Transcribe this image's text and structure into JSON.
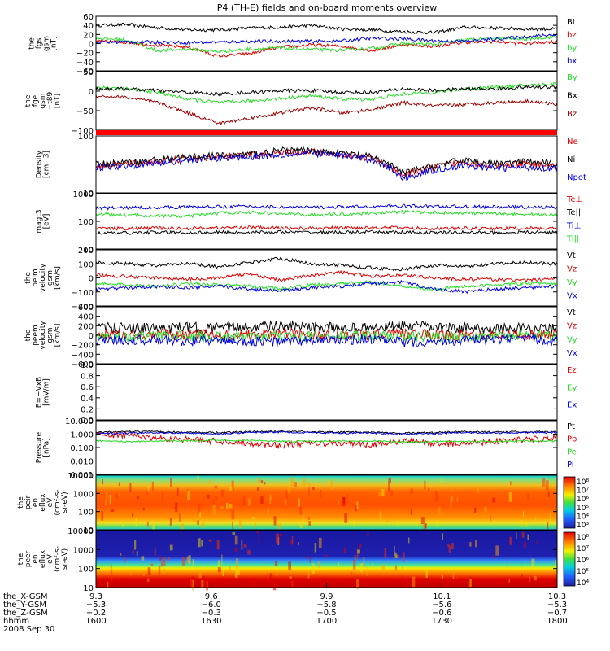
{
  "title": "P4 (TH-E) fields and on-board moments overview",
  "colors": {
    "black": "#000000",
    "red": "#dd0000",
    "green": "#22dd22",
    "blue": "#0000dd",
    "darkred": "#990000"
  },
  "chart_data": [
    {
      "type": "line",
      "panel": "fgs",
      "ylabel": [
        "the",
        "fgs",
        "gsm",
        "[nT]"
      ],
      "ticks": [
        "60",
        "40",
        "20",
        "0",
        "−20",
        "−40",
        "−60"
      ],
      "ylim": [
        -60,
        60
      ],
      "series": [
        {
          "name": "Bt",
          "color": "black",
          "values": [
            40,
            42,
            35,
            30,
            30,
            34,
            36,
            40,
            32,
            30,
            26,
            24,
            36,
            34,
            32,
            32
          ]
        },
        {
          "name": "bz",
          "color": "red",
          "values": [
            5,
            3,
            -4,
            -8,
            -28,
            -22,
            -8,
            -3,
            -6,
            -16,
            -2,
            -6,
            3,
            4,
            0,
            5
          ]
        },
        {
          "name": "by",
          "color": "green",
          "values": [
            12,
            8,
            -16,
            -12,
            -18,
            -12,
            -10,
            -13,
            -15,
            -10,
            0,
            -2,
            8,
            12,
            10,
            15
          ]
        },
        {
          "name": "bx",
          "color": "blue",
          "values": [
            2,
            4,
            3,
            2,
            3,
            5,
            5,
            5,
            6,
            12,
            10,
            6,
            5,
            10,
            15,
            20
          ]
        }
      ]
    },
    {
      "type": "line",
      "panel": "fge",
      "ylabel": [
        "the",
        "fge",
        "gsm",
        "−t89",
        "[nT]"
      ],
      "ticks": [
        "50",
        "0",
        "−50",
        "−100"
      ],
      "ylim": [
        -120,
        50
      ],
      "series": [
        {
          "name": "By",
          "color": "green",
          "values": [
            5,
            0,
            -10,
            -30,
            -40,
            -35,
            -28,
            -20,
            -30,
            -30,
            -15,
            -10,
            0,
            5,
            10,
            15
          ]
        },
        {
          "name": "Bx",
          "color": "black",
          "values": [
            0,
            0,
            -5,
            -10,
            -15,
            -10,
            -5,
            -5,
            -10,
            -10,
            0,
            -5,
            0,
            0,
            5,
            5
          ]
        },
        {
          "name": "Bz",
          "color": "darkred",
          "values": [
            -20,
            -25,
            -40,
            -70,
            -100,
            -85,
            -70,
            -55,
            -70,
            -60,
            -40,
            -50,
            -45,
            -40,
            -35,
            -45
          ]
        }
      ]
    },
    {
      "type": "line",
      "panel": "density",
      "ylabel": [
        "Density",
        "[cm−3]"
      ],
      "ticks": [
        "100",
        "10"
      ],
      "log": true,
      "ylim": [
        10,
        100
      ],
      "series": [
        {
          "name": "Ne",
          "color": "red",
          "values": [
            30,
            32,
            35,
            40,
            42,
            45,
            50,
            52,
            48,
            40,
            20,
            28,
            35,
            30,
            32,
            30
          ]
        },
        {
          "name": "Ni",
          "color": "black",
          "values": [
            32,
            34,
            38,
            42,
            45,
            48,
            55,
            55,
            50,
            42,
            22,
            30,
            38,
            32,
            35,
            32
          ]
        },
        {
          "name": "Npot",
          "color": "blue",
          "values": [
            28,
            30,
            33,
            38,
            40,
            43,
            47,
            50,
            45,
            38,
            18,
            25,
            30,
            27,
            28,
            27
          ]
        }
      ]
    },
    {
      "type": "line",
      "panel": "mag",
      "ylabel": [
        "magt3",
        "[eV]"
      ],
      "ticks": [
        "1000",
        "100",
        "10"
      ],
      "log": true,
      "ylim": [
        10,
        1000
      ],
      "series": [
        {
          "name": "Te⊥",
          "color": "red",
          "values": [
            55,
            55,
            57,
            56,
            58,
            60,
            57,
            56,
            58,
            60,
            58,
            55,
            56,
            55,
            56,
            55
          ]
        },
        {
          "name": "Te||",
          "color": "black",
          "values": [
            38,
            38,
            40,
            39,
            40,
            40,
            41,
            40,
            40,
            41,
            40,
            39,
            40,
            39,
            40,
            40
          ]
        },
        {
          "name": "Ti⊥",
          "color": "blue",
          "values": [
            300,
            310,
            320,
            330,
            340,
            350,
            330,
            320,
            330,
            340,
            360,
            350,
            340,
            330,
            330,
            320
          ]
        },
        {
          "name": "Ti||",
          "color": "green",
          "values": [
            180,
            170,
            160,
            150,
            200,
            210,
            190,
            170,
            180,
            200,
            220,
            210,
            200,
            190,
            180,
            170
          ]
        }
      ]
    },
    {
      "type": "line",
      "panel": "peim",
      "ylabel": [
        "the",
        "peim",
        "velocity",
        "gsm",
        "[km/s]"
      ],
      "ticks": [
        "200",
        "100",
        "0",
        "−100",
        "−200"
      ],
      "ylim": [
        -200,
        200
      ],
      "series": [
        {
          "name": "Vt",
          "color": "black",
          "values": [
            110,
            100,
            90,
            100,
            80,
            110,
            140,
            100,
            90,
            70,
            60,
            90,
            80,
            100,
            110,
            100
          ]
        },
        {
          "name": "Vz",
          "color": "red",
          "values": [
            20,
            10,
            0,
            -10,
            0,
            30,
            -20,
            20,
            40,
            10,
            20,
            0,
            -10,
            -10,
            -20,
            0
          ]
        },
        {
          "name": "Vy",
          "color": "green",
          "values": [
            -40,
            -50,
            -60,
            -40,
            -50,
            -60,
            -80,
            -50,
            -40,
            -30,
            -60,
            -80,
            -60,
            -50,
            -40,
            -40
          ]
        },
        {
          "name": "Vx",
          "color": "blue",
          "values": [
            -80,
            -70,
            -60,
            -70,
            -60,
            -80,
            -90,
            -70,
            -60,
            -40,
            -30,
            -80,
            -100,
            -80,
            -70,
            -60
          ]
        }
      ]
    },
    {
      "type": "line",
      "panel": "peem",
      "ylabel": [
        "the",
        "peem",
        "velocity",
        "gsm",
        "[km/s]"
      ],
      "ticks": [
        "600",
        "400",
        "200",
        "0",
        "−200",
        "−400",
        "−600"
      ],
      "ylim": [
        -600,
        600
      ],
      "series": [
        {
          "name": "Vt",
          "color": "black",
          "values": [
            150,
            160,
            140,
            170,
            150,
            180,
            190,
            170,
            160,
            150,
            200,
            170,
            150,
            140,
            150,
            140
          ]
        },
        {
          "name": "Vz",
          "color": "red",
          "values": [
            20,
            10,
            30,
            0,
            20,
            10,
            40,
            20,
            10,
            20,
            30,
            10,
            0,
            20,
            10,
            20
          ]
        },
        {
          "name": "Vy",
          "color": "green",
          "values": [
            -20,
            -30,
            -10,
            -20,
            -30,
            -40,
            -20,
            -30,
            -20,
            -10,
            -30,
            -20,
            -30,
            -20,
            -10,
            -20
          ]
        },
        {
          "name": "Vx",
          "color": "blue",
          "values": [
            -100,
            -90,
            -110,
            -120,
            -100,
            -130,
            -140,
            -110,
            -100,
            -90,
            -150,
            -120,
            -110,
            -100,
            -90,
            -100
          ]
        }
      ]
    },
    {
      "type": "line",
      "panel": "efield",
      "ylabel": [
        "E=−VxB",
        "[mV/m]"
      ],
      "ticks": [
        "1.0",
        "0.8",
        "0.6",
        "0.4",
        "0.2",
        "0.0"
      ],
      "ylim": [
        0,
        1
      ],
      "series": [
        {
          "name": "Ez",
          "color": "red",
          "values": []
        },
        {
          "name": "Ey",
          "color": "green",
          "values": []
        },
        {
          "name": "Ex",
          "color": "blue",
          "values": []
        }
      ]
    },
    {
      "type": "line",
      "panel": "pressure",
      "ylabel": [
        "Pressure",
        "[nPa]"
      ],
      "ticks": [
        "10.000",
        "1.000",
        "0.100",
        "0.010",
        "0.001"
      ],
      "log": true,
      "ylim": [
        0.001,
        10
      ],
      "series": [
        {
          "name": "Pt",
          "color": "black",
          "values": [
            1.4,
            1.5,
            1.5,
            1.4,
            1.3,
            1.5,
            1.6,
            1.5,
            1.4,
            1.4,
            1.2,
            1.3,
            1.5,
            1.4,
            1.5,
            1.5
          ]
        },
        {
          "name": "Pb",
          "color": "red",
          "values": [
            0.9,
            0.8,
            0.5,
            0.4,
            0.3,
            0.2,
            0.15,
            0.2,
            0.2,
            0.15,
            0.3,
            0.2,
            0.2,
            0.3,
            0.4,
            0.5
          ]
        },
        {
          "name": "Pe",
          "color": "green",
          "values": [
            0.3,
            0.28,
            0.3,
            0.32,
            0.35,
            0.33,
            0.3,
            0.28,
            0.3,
            0.32,
            0.25,
            0.28,
            0.3,
            0.28,
            0.3,
            0.3
          ]
        },
        {
          "name": "Pi",
          "color": "blue",
          "values": [
            1.1,
            1.2,
            1.3,
            1.2,
            1.1,
            1.3,
            1.4,
            1.3,
            1.2,
            1.2,
            1.0,
            1.1,
            1.3,
            1.2,
            1.3,
            1.3
          ]
        }
      ]
    },
    {
      "type": "heatmap",
      "panel": "peir",
      "ylabel": [
        "the",
        "peir",
        "en",
        "eflux",
        "eV",
        "(cm²-s-",
        "sr-eV)"
      ],
      "ticks": [
        "10000",
        "1000",
        "100",
        "10"
      ],
      "log": true,
      "ylim": [
        10,
        10000
      ],
      "colorbar": [
        "10⁸",
        "10⁷",
        "10⁶",
        "10⁵",
        "10⁴",
        "10³"
      ]
    },
    {
      "type": "heatmap",
      "panel": "peer",
      "ylabel": [
        "the",
        "peer",
        "en",
        "eflux",
        "eV",
        "(cm²-s-",
        "sr-eV)"
      ],
      "ticks": [
        "10000",
        "1000",
        "100",
        "10"
      ],
      "log": true,
      "ylim": [
        10,
        10000
      ],
      "colorbar": [
        "10⁸",
        "10⁷",
        "10⁶",
        "10⁵",
        "10⁴"
      ]
    }
  ],
  "xaxis": {
    "row_names": [
      "the_X-GSM",
      "the_Y-GSM",
      "the_Z-GSM",
      "hhmm"
    ],
    "columns": [
      [
        "9.3",
        "9.6",
        "9.9",
        "10.1",
        "10.3"
      ],
      [
        "−5.3",
        "−6.0",
        "−5.8",
        "−5.6",
        "−5.3"
      ],
      [
        "−0.2",
        "−0.3",
        "−0.5",
        "−0.6",
        "−0.7"
      ],
      [
        "1600",
        "1630",
        "1700",
        "1730",
        "1800"
      ]
    ],
    "date": "2008 Sep 30"
  }
}
